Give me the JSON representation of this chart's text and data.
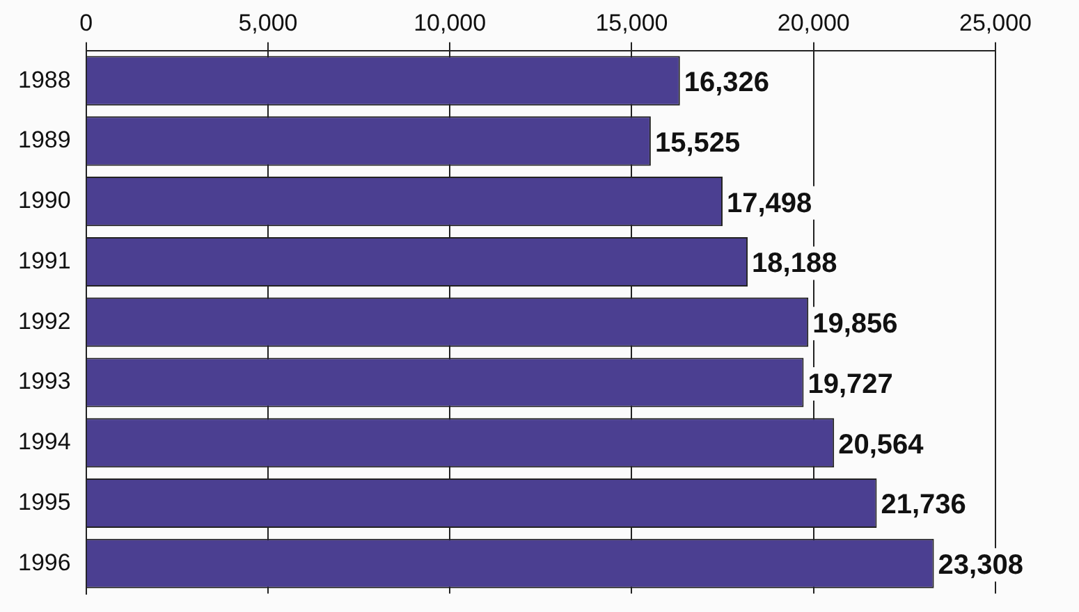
{
  "chart_data": {
    "type": "bar",
    "orientation": "horizontal",
    "categories": [
      "1988",
      "1989",
      "1990",
      "1991",
      "1992",
      "1993",
      "1994",
      "1995",
      "1996"
    ],
    "values": [
      16326,
      15525,
      17498,
      18188,
      19856,
      19727,
      20564,
      21736,
      23308
    ],
    "color": "#4b3f91",
    "xlim": [
      0,
      25000
    ],
    "xticks": [
      {
        "value": 0,
        "label": "0"
      },
      {
        "value": 5000,
        "label": "5,000"
      },
      {
        "value": 10000,
        "label": "10,000"
      },
      {
        "value": 15000,
        "label": "15,000"
      },
      {
        "value": 20000,
        "label": "20,000"
      },
      {
        "value": 25000,
        "label": "25,000"
      }
    ],
    "value_labels": [
      "16,326",
      "15,525",
      "17,498",
      "18,188",
      "19,856",
      "19,727",
      "20,564",
      "21,736",
      "23,308"
    ],
    "grid": "x",
    "legend": false
  }
}
